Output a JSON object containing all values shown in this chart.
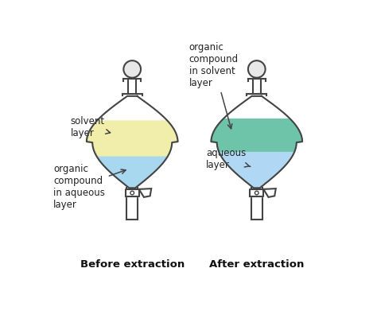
{
  "bg_color": "#ffffff",
  "title_left": "Before extraction",
  "title_right": "After extraction",
  "label_solvent_layer": "solvent\nlayer",
  "label_organic_aqueous": "organic\ncompound\nin aqueous\nlayer",
  "label_organic_solvent": "organic\ncompound\nin solvent\nlayer",
  "label_aqueous": "aqueous\nlayer",
  "color_yellow": "#f0eeaa",
  "color_blue_light": "#a8d8f0",
  "color_green": "#6dc4a8",
  "color_blue2": "#b0d8f5",
  "outline_color": "#444444",
  "text_color": "#222222",
  "bold_title_color": "#111111",
  "funnel_fill": "#ffffff"
}
